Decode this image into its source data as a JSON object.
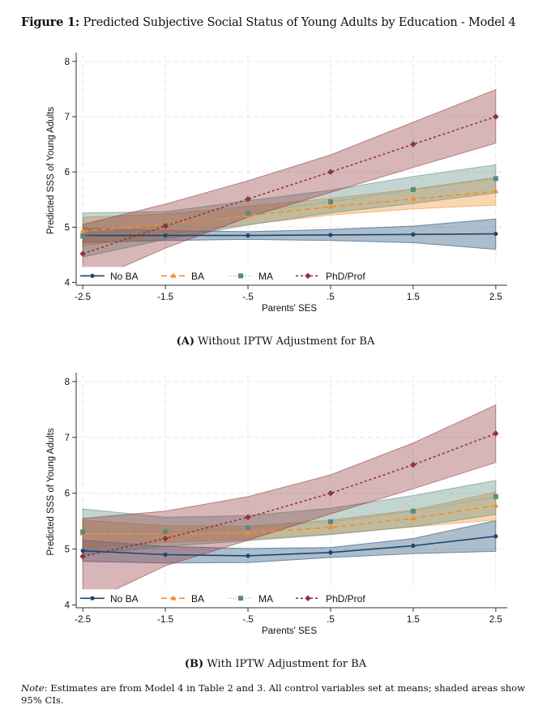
{
  "figure": {
    "label": "Figure 1:",
    "title": "Predicted Subjective Social Status of Young Adults by Education - Model 4"
  },
  "note": {
    "label": "Note",
    "text": ": Estimates are from Model 4 in Table 2 and 3. All control variables set at means; shaded areas show 95% CIs."
  },
  "colors": {
    "no_ba": "#1a476f",
    "ba": "#f28e2b",
    "ma": "#5a8a7e",
    "phd": "#90353b"
  },
  "chart_data": [
    {
      "type": "line",
      "panel_label": "(A)",
      "caption": "Without IPTW Adjustment for BA",
      "title": "",
      "xlabel": "Parents' SES",
      "ylabel": "Predicted SSS of Young Adults",
      "x": [
        -2.5,
        -1.5,
        -0.5,
        0.5,
        1.5,
        2.5
      ],
      "x_tick_labels": [
        "-2.5",
        "-1.5",
        "-.5",
        ".5",
        "1.5",
        "2.5"
      ],
      "y_ticks": [
        4,
        5,
        6,
        7,
        8
      ],
      "y_tick_labels": [
        "4",
        "5",
        "6",
        "7",
        "8"
      ],
      "xlim": [
        -2.58,
        2.58
      ],
      "ylim": [
        3.95,
        8.1
      ],
      "grid": true,
      "legend_position": "bottom-inside",
      "series": [
        {
          "name": "No BA",
          "key": "no_ba",
          "marker": "circle",
          "line": "solid",
          "values": [
            4.85,
            4.85,
            4.85,
            4.86,
            4.87,
            4.88
          ],
          "ci_lower": [
            4.72,
            4.76,
            4.78,
            4.76,
            4.72,
            4.6
          ],
          "ci_upper": [
            4.98,
            4.94,
            4.92,
            4.96,
            5.02,
            5.15
          ]
        },
        {
          "name": "BA",
          "key": "ba",
          "marker": "triangle",
          "line": "dash",
          "values": [
            4.93,
            5.05,
            5.21,
            5.37,
            5.51,
            5.65
          ],
          "ci_lower": [
            4.66,
            4.86,
            5.05,
            5.22,
            5.33,
            5.4
          ],
          "ci_upper": [
            5.18,
            5.24,
            5.38,
            5.52,
            5.69,
            5.9
          ]
        },
        {
          "name": "MA",
          "key": "ma",
          "marker": "square",
          "line": "dot",
          "values": [
            4.84,
            5.03,
            5.25,
            5.46,
            5.68,
            5.88
          ],
          "ci_lower": [
            4.46,
            4.78,
            5.04,
            5.26,
            5.43,
            5.62
          ],
          "ci_upper": [
            5.26,
            5.28,
            5.48,
            5.67,
            5.92,
            6.13
          ]
        },
        {
          "name": "PhD/Prof",
          "key": "phd",
          "marker": "diamond",
          "line": "shortdash",
          "values": [
            4.52,
            5.02,
            5.51,
            6.0,
            6.5,
            7.0
          ],
          "ci_lower": [
            3.97,
            4.62,
            5.18,
            5.63,
            6.08,
            6.52
          ],
          "ci_upper": [
            5.05,
            5.42,
            5.84,
            6.31,
            6.9,
            7.49
          ]
        }
      ]
    },
    {
      "type": "line",
      "panel_label": "(B)",
      "caption": "With IPTW Adjustment for BA",
      "title": "",
      "xlabel": "Parents' SES",
      "ylabel": "Predicted SSS of Young Adults",
      "x": [
        -2.5,
        -1.5,
        -0.5,
        0.5,
        1.5,
        2.5
      ],
      "x_tick_labels": [
        "-2.5",
        "-1.5",
        "-.5",
        ".5",
        "1.5",
        "2.5"
      ],
      "y_ticks": [
        4,
        5,
        6,
        7,
        8
      ],
      "y_tick_labels": [
        "4",
        "5",
        "6",
        "7",
        "8"
      ],
      "xlim": [
        -2.58,
        2.58
      ],
      "ylim": [
        3.95,
        8.1
      ],
      "grid": true,
      "legend_position": "bottom-inside",
      "series": [
        {
          "name": "No BA",
          "key": "no_ba",
          "marker": "circle",
          "line": "solid",
          "values": [
            4.97,
            4.9,
            4.88,
            4.94,
            5.06,
            5.23
          ],
          "ci_lower": [
            4.78,
            4.75,
            4.76,
            4.85,
            4.92,
            4.96
          ],
          "ci_upper": [
            5.16,
            5.05,
            5.01,
            5.03,
            5.19,
            5.51
          ]
        },
        {
          "name": "BA",
          "key": "ba",
          "marker": "triangle",
          "line": "dash",
          "values": [
            5.28,
            5.27,
            5.29,
            5.39,
            5.55,
            5.78
          ],
          "ci_lower": [
            5.02,
            5.12,
            5.17,
            5.27,
            5.4,
            5.52
          ],
          "ci_upper": [
            5.52,
            5.42,
            5.41,
            5.52,
            5.7,
            6.02
          ]
        },
        {
          "name": "MA",
          "key": "ma",
          "marker": "square",
          "line": "dot",
          "values": [
            5.31,
            5.31,
            5.38,
            5.49,
            5.68,
            5.94
          ],
          "ci_lower": [
            4.9,
            5.05,
            5.15,
            5.26,
            5.4,
            5.62
          ],
          "ci_upper": [
            5.72,
            5.57,
            5.6,
            5.73,
            5.96,
            6.23
          ]
        },
        {
          "name": "PhD/Prof",
          "key": "phd",
          "marker": "diamond",
          "line": "shortdash",
          "values": [
            4.87,
            5.19,
            5.57,
            6.0,
            6.51,
            7.07
          ],
          "ci_lower": [
            4.0,
            4.7,
            5.16,
            5.63,
            6.08,
            6.55
          ],
          "ci_upper": [
            5.55,
            5.68,
            5.94,
            6.33,
            6.9,
            7.58
          ]
        }
      ]
    }
  ]
}
